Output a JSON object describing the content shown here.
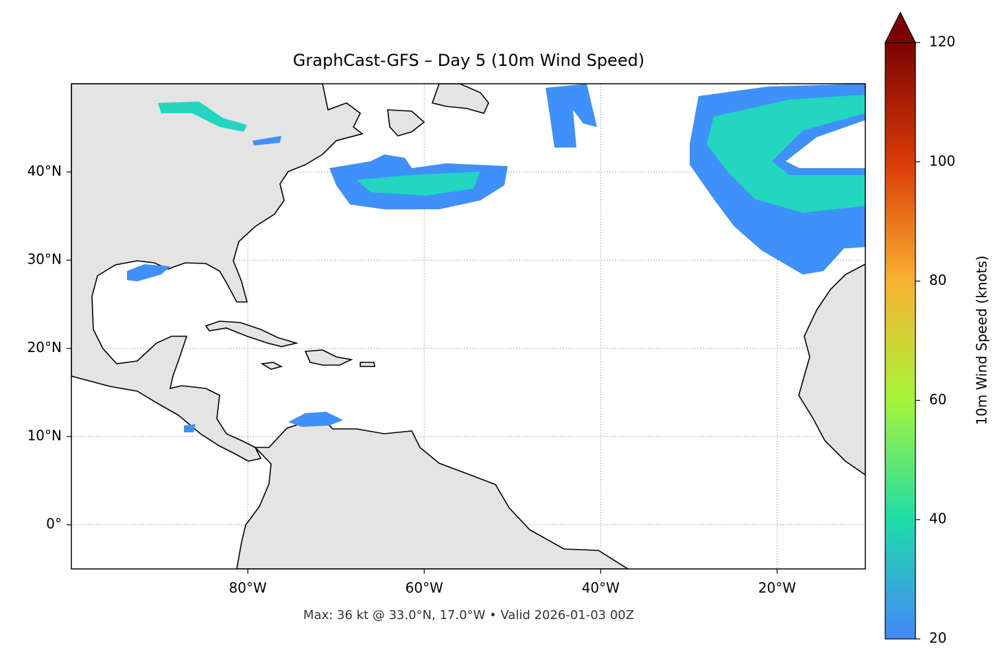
{
  "title": "GraphCast-GFS – Day 5 (10m Wind Speed)",
  "footer": "Max: 36 kt @ 33.0°N, 17.0°W • Valid 2026-01-03 00Z",
  "map": {
    "xlim": [
      -100,
      -10
    ],
    "ylim": [
      -5,
      50
    ],
    "xticks": [
      {
        "value": -80,
        "label": "80°W"
      },
      {
        "value": -60,
        "label": "60°W"
      },
      {
        "value": -40,
        "label": "40°W"
      },
      {
        "value": -20,
        "label": "20°W"
      }
    ],
    "yticks": [
      {
        "value": 0,
        "label": "0°"
      },
      {
        "value": 10,
        "label": "10°N"
      },
      {
        "value": 20,
        "label": "20°N"
      },
      {
        "value": 30,
        "label": "30°N"
      },
      {
        "value": 40,
        "label": "40°N"
      }
    ],
    "grid": true
  },
  "colorbar": {
    "label": "10m Wind Speed (knots)",
    "lim": [
      20,
      120
    ],
    "ticks": [
      20,
      40,
      60,
      80,
      100,
      120
    ],
    "extend": "max",
    "colors": [
      "#4488fb",
      "#1fdca8",
      "#a5f53a",
      "#f9b232",
      "#d93a07",
      "#7a0403"
    ]
  }
}
